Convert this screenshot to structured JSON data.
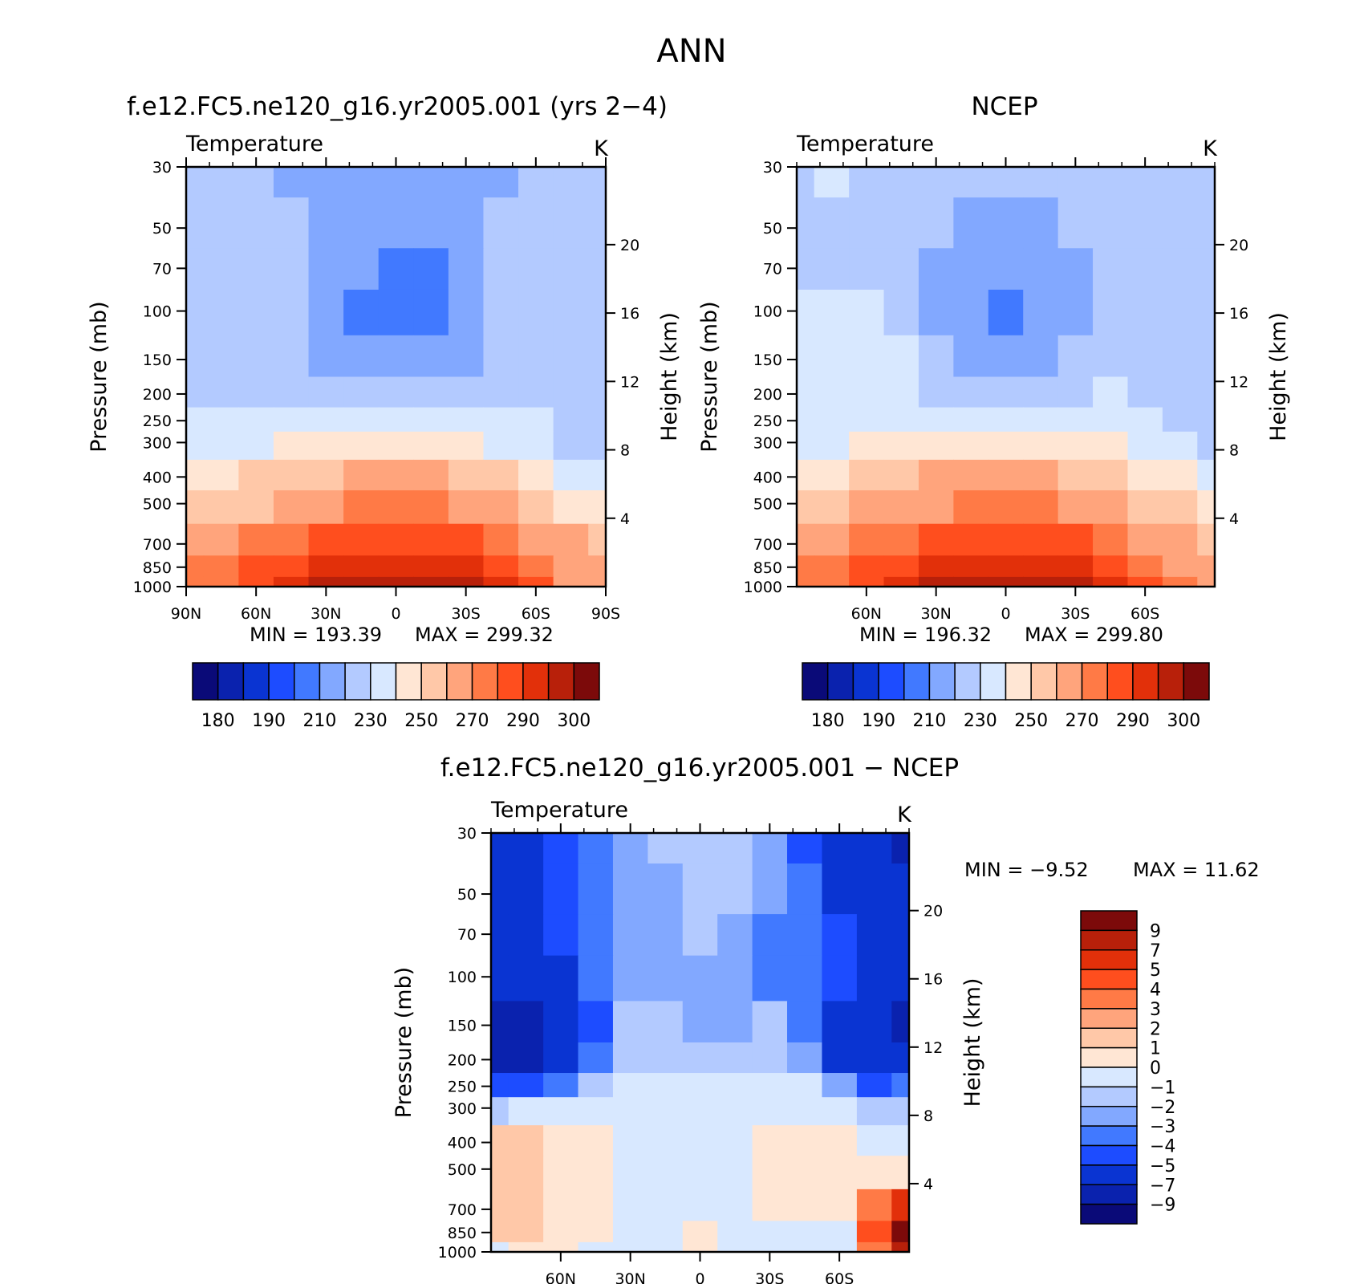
{
  "figure_title": "ANN",
  "colors": {
    "temperature_bins": [
      "#0a0a78",
      "#0a22ae",
      "#0a34d2",
      "#1d4cff",
      "#4179ff",
      "#82a8ff",
      "#b3caff",
      "#d8e8ff",
      "#ffe6d4",
      "#ffc8a8",
      "#ffa47c",
      "#ff7a46",
      "#ff4e1e",
      "#e2300a",
      "#b8200a",
      "#7c0a0a"
    ],
    "difference_bins": [
      "#0a0a78",
      "#0a22ae",
      "#0a34d2",
      "#1d4cff",
      "#4179ff",
      "#82a8ff",
      "#b3caff",
      "#d8e8ff",
      "#ffe6d4",
      "#ffc8a8",
      "#ffa47c",
      "#ff7a46",
      "#ff4e1e",
      "#e2300a",
      "#b8200a",
      "#7c0a0a"
    ]
  },
  "chart_data": [
    {
      "id": "model",
      "type": "heatmap",
      "title": "f.e12.FC5.ne120_g16.yr2005.001 (yrs 2−4)",
      "variable": "Temperature",
      "units": "K",
      "xlabel": "",
      "ylabel": "Pressure (mb)",
      "y2label": "Height (km)",
      "x_ticks": [
        "90N",
        "60N",
        "30N",
        "0",
        "30S",
        "60S",
        "90S"
      ],
      "x_tick_values": [
        90,
        60,
        30,
        0,
        -30,
        -60,
        -90
      ],
      "xlim": [
        90,
        -90
      ],
      "y_ticks": [
        30,
        50,
        70,
        100,
        150,
        200,
        250,
        300,
        400,
        500,
        700,
        850,
        1000
      ],
      "ylim": [
        30,
        1000
      ],
      "y2_ticks": [
        4,
        8,
        12,
        16,
        20
      ],
      "min_label": "MIN = 193.39",
      "max_label": "MAX = 299.32",
      "min": 193.39,
      "max": 299.32,
      "colorbar_labels": [
        "180",
        "190",
        "210",
        "230",
        "250",
        "270",
        "290",
        "300"
      ],
      "levels": [
        180,
        190,
        200,
        210,
        220,
        230,
        240,
        250,
        260,
        270,
        280,
        290,
        300
      ],
      "latitude_samples": [
        90,
        75,
        60,
        45,
        30,
        15,
        0,
        -15,
        -30,
        -45,
        -60,
        -75,
        -90
      ],
      "pressure_levels": [
        30,
        50,
        70,
        100,
        150,
        200,
        250,
        300,
        400,
        500,
        700,
        850,
        1000
      ],
      "values": [
        [
          212,
          212,
          210,
          208,
          207,
          206,
          206,
          206,
          207,
          208,
          210,
          214,
          216
        ],
        [
          215,
          214,
          212,
          210,
          208,
          206,
          205,
          206,
          208,
          210,
          213,
          217,
          219
        ],
        [
          214,
          214,
          213,
          212,
          206,
          200,
          199,
          199,
          205,
          211,
          213,
          216,
          218
        ],
        [
          214,
          214,
          214,
          213,
          204,
          197,
          195,
          197,
          203,
          211,
          213,
          215,
          216
        ],
        [
          215,
          216,
          216,
          216,
          209,
          205,
          203,
          205,
          209,
          215,
          215,
          214,
          213
        ],
        [
          217,
          218,
          219,
          219,
          219,
          218,
          218,
          218,
          218,
          219,
          218,
          215,
          213
        ],
        [
          220,
          221,
          222,
          224,
          226,
          226,
          227,
          226,
          225,
          223,
          220,
          216,
          214
        ],
        [
          224,
          226,
          228,
          231,
          235,
          238,
          239,
          237,
          233,
          228,
          224,
          219,
          215
        ],
        [
          232,
          235,
          240,
          245,
          249,
          252,
          253,
          251,
          247,
          242,
          236,
          229,
          222
        ],
        [
          242,
          244,
          249,
          254,
          258,
          261,
          262,
          261,
          257,
          252,
          246,
          238,
          230
        ],
        [
          253,
          256,
          262,
          268,
          273,
          276,
          277,
          275,
          271,
          265,
          258,
          251,
          245
        ],
        [
          260,
          263,
          270,
          278,
          283,
          287,
          288,
          286,
          282,
          275,
          267,
          256,
          252
        ],
        [
          266,
          269,
          277,
          286,
          293,
          297,
          299,
          296,
          290,
          283,
          273,
          258,
          255
        ]
      ]
    },
    {
      "id": "obs",
      "type": "heatmap",
      "title": "NCEP",
      "variable": "Temperature",
      "units": "K",
      "xlabel": "",
      "ylabel": "Pressure (mb)",
      "y2label": "Height (km)",
      "x_ticks": [
        "60N",
        "30N",
        "0",
        "30S",
        "60S"
      ],
      "x_tick_values": [
        60,
        30,
        0,
        -30,
        -60
      ],
      "xlim": [
        90,
        -90
      ],
      "y_ticks": [
        30,
        50,
        70,
        100,
        150,
        200,
        250,
        300,
        400,
        500,
        700,
        850,
        1000
      ],
      "ylim": [
        30,
        1000
      ],
      "y2_ticks": [
        4,
        8,
        12,
        16,
        20
      ],
      "min_label": "MIN = 196.32",
      "max_label": "MAX = 299.80",
      "min": 196.32,
      "max": 299.8,
      "colorbar_labels": [
        "180",
        "190",
        "210",
        "230",
        "250",
        "270",
        "290",
        "300"
      ],
      "levels": [
        180,
        190,
        200,
        210,
        220,
        230,
        240,
        250,
        260,
        270,
        280,
        290,
        300
      ],
      "latitude_samples": [
        90,
        75,
        60,
        45,
        30,
        15,
        0,
        -15,
        -30,
        -45,
        -60,
        -75,
        -90
      ],
      "pressure_levels": [
        30,
        50,
        70,
        100,
        150,
        200,
        250,
        300,
        400,
        500,
        700,
        850,
        1000
      ],
      "values": [
        [
          219,
          220,
          219,
          218,
          218,
          217,
          216,
          216,
          217,
          218,
          218,
          219,
          218
        ],
        [
          219,
          219,
          218,
          217,
          214,
          209,
          207,
          209,
          214,
          217,
          217,
          217,
          213
        ],
        [
          218,
          218,
          218,
          216,
          208,
          203,
          201,
          203,
          208,
          215,
          216,
          216,
          212
        ],
        [
          220,
          222,
          224,
          218,
          205,
          200,
          198,
          200,
          205,
          214,
          216,
          215,
          211
        ],
        [
          222,
          225,
          227,
          222,
          212,
          208,
          206,
          208,
          212,
          217,
          217,
          215,
          214
        ],
        [
          223,
          226,
          226,
          223,
          219,
          218,
          218,
          218,
          219,
          220,
          218,
          215,
          214
        ],
        [
          225,
          227,
          226,
          226,
          227,
          227,
          227,
          227,
          226,
          224,
          221,
          216,
          214
        ],
        [
          228,
          229,
          230,
          232,
          235,
          238,
          239,
          238,
          235,
          230,
          225,
          220,
          217
        ],
        [
          235,
          237,
          241,
          246,
          250,
          253,
          254,
          252,
          248,
          243,
          237,
          230,
          226
        ],
        [
          244,
          246,
          250,
          255,
          259,
          262,
          263,
          262,
          258,
          253,
          247,
          240,
          234
        ],
        [
          254,
          257,
          262,
          268,
          273,
          276,
          277,
          276,
          272,
          266,
          259,
          252,
          246
        ],
        [
          261,
          264,
          270,
          278,
          283,
          287,
          288,
          287,
          283,
          276,
          268,
          258,
          252
        ],
        [
          266,
          269,
          277,
          286,
          293,
          297,
          299,
          297,
          291,
          284,
          274,
          262,
          254
        ]
      ]
    },
    {
      "id": "diff",
      "type": "heatmap",
      "title": "f.e12.FC5.ne120_g16.yr2005.001 − NCEP",
      "variable": "Temperature",
      "units": "K",
      "xlabel": "",
      "ylabel": "Pressure (mb)",
      "y2label": "Height (km)",
      "x_ticks": [
        "60N",
        "30N",
        "0",
        "30S",
        "60S"
      ],
      "x_tick_values": [
        60,
        30,
        0,
        -30,
        -60
      ],
      "xlim": [
        90,
        -90
      ],
      "y_ticks": [
        30,
        50,
        70,
        100,
        150,
        200,
        250,
        300,
        400,
        500,
        700,
        850,
        1000
      ],
      "ylim": [
        30,
        1000
      ],
      "y2_ticks": [
        4,
        8,
        12,
        16,
        20
      ],
      "min_label": "MIN = −9.52",
      "max_label": "MAX = 11.62",
      "min": -9.52,
      "max": 11.62,
      "colorbar_labels": [
        "9",
        "7",
        "5",
        "4",
        "3",
        "2",
        "1",
        "0",
        "−1",
        "−2",
        "−3",
        "−4",
        "−5",
        "−7",
        "−9"
      ],
      "levels": [
        -9,
        -7,
        -5,
        -4,
        -3,
        -2,
        -1,
        0,
        1,
        2,
        3,
        4,
        5,
        7,
        9
      ],
      "latitude_samples": [
        90,
        75,
        60,
        45,
        30,
        15,
        0,
        -15,
        -30,
        -45,
        -60,
        -75,
        -90
      ],
      "pressure_levels": [
        30,
        50,
        70,
        100,
        150,
        200,
        250,
        300,
        400,
        500,
        700,
        850,
        1000
      ],
      "values": [
        [
          -7,
          -6,
          -5,
          -4,
          -3,
          -2,
          -2,
          -2,
          -3,
          -5,
          -6,
          -7,
          -8
        ],
        [
          -6,
          -6,
          -5,
          -4,
          -3,
          -3,
          -2,
          -2,
          -3,
          -4,
          -6,
          -6,
          -7
        ],
        [
          -6,
          -6,
          -5,
          -4,
          -3,
          -3,
          -2,
          -3,
          -4,
          -4,
          -5,
          -6,
          -6
        ],
        [
          -7,
          -7,
          -6,
          -4,
          -3,
          -3,
          -3,
          -3,
          -4,
          -4,
          -5,
          -7,
          -6
        ],
        [
          -8,
          -8,
          -7,
          -5,
          -2,
          -2,
          -3,
          -3,
          -2,
          -4,
          -7,
          -7,
          -8
        ],
        [
          -8,
          -8,
          -6,
          -4,
          -2,
          -2,
          -2,
          -2,
          -2,
          -3,
          -6,
          -7,
          -7
        ],
        [
          -5,
          -5,
          -4,
          -2,
          -1,
          -1,
          -1,
          -1,
          -1,
          -1,
          -3,
          -5,
          -4
        ],
        [
          -2,
          -1,
          -1,
          -0.5,
          -0.5,
          -0.5,
          -0.5,
          -0.5,
          -0.5,
          -0.5,
          -1,
          -2,
          -2
        ],
        [
          1.5,
          1.5,
          0.5,
          0.5,
          -0.5,
          -0.5,
          -0.5,
          -0.5,
          0.5,
          0.5,
          0.5,
          -0.5,
          -0.5
        ],
        [
          1.5,
          1.5,
          0.5,
          0.5,
          -0.5,
          -0.5,
          -0.5,
          -0.5,
          0.5,
          0.5,
          0.5,
          0.5,
          0.5
        ],
        [
          1.5,
          1.5,
          0.5,
          0.5,
          -0.5,
          -0.5,
          -0.5,
          -0.5,
          0.5,
          0.5,
          0.5,
          3,
          6
        ],
        [
          1.5,
          1.5,
          0.5,
          0.5,
          -0.5,
          -0.5,
          0.5,
          -0.5,
          -0.5,
          -0.5,
          -0.5,
          4,
          10
        ],
        [
          -0.5,
          0.5,
          0.5,
          -0.5,
          -0.5,
          -0.5,
          0.5,
          -0.5,
          -1,
          -1,
          -0.5,
          3,
          8
        ]
      ]
    }
  ]
}
